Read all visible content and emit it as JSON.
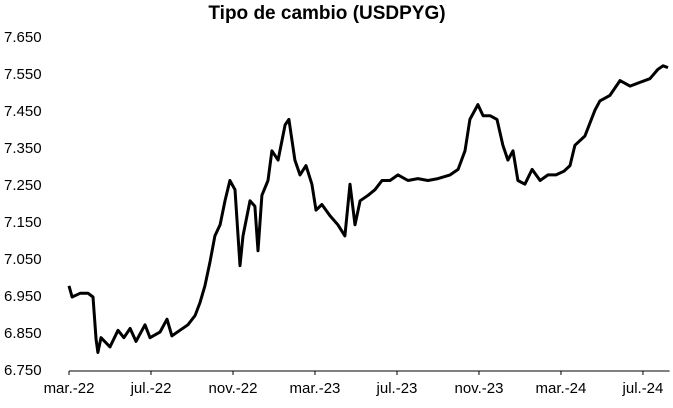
{
  "chart_data": {
    "type": "line",
    "title": "Tipo de cambio (USDPYG)",
    "x": [
      0,
      0.15,
      0.54,
      0.93,
      1.17,
      1.32,
      1.41,
      1.56,
      2.0,
      2.39,
      2.68,
      2.98,
      3.27,
      3.71,
      3.95,
      4.44,
      4.78,
      5.02,
      5.41,
      5.8,
      6.15,
      6.39,
      6.63,
      6.88,
      7.12,
      7.37,
      7.61,
      7.85,
      8.1,
      8.34,
      8.49,
      8.83,
      9.07,
      9.22,
      9.41,
      9.71,
      9.9,
      10.2,
      10.54,
      10.73,
      11.02,
      11.27,
      11.56,
      11.85,
      12.05,
      12.34,
      12.73,
      13.12,
      13.46,
      13.71,
      13.95,
      14.2,
      14.59,
      14.93,
      15.27,
      15.66,
      16.05,
      16.54,
      17.02,
      17.51,
      18.0,
      18.59,
      18.98,
      19.32,
      19.56,
      19.95,
      20.2,
      20.54,
      20.88,
      21.17,
      21.41,
      21.66,
      21.9,
      22.24,
      22.59,
      22.98,
      23.37,
      23.76,
      24.15,
      24.44,
      24.68,
      25.17,
      25.66,
      25.9,
      26.39,
      26.88,
      27.37,
      27.85,
      28.34,
      28.73,
      28.98,
      29.22
    ],
    "series": [
      {
        "name": "USDPYG",
        "color": "#000000",
        "values": [
          6980,
          6950,
          6960,
          6960,
          6950,
          6835,
          6800,
          6840,
          6815,
          6860,
          6840,
          6865,
          6830,
          6875,
          6840,
          6855,
          6890,
          6845,
          6860,
          6875,
          6900,
          6935,
          6980,
          7045,
          7115,
          7145,
          7210,
          7265,
          7240,
          7035,
          7115,
          7210,
          7195,
          7075,
          7225,
          7265,
          7345,
          7320,
          7415,
          7430,
          7320,
          7280,
          7305,
          7255,
          7185,
          7200,
          7170,
          7145,
          7115,
          7255,
          7145,
          7210,
          7225,
          7240,
          7265,
          7265,
          7280,
          7265,
          7270,
          7265,
          7270,
          7280,
          7295,
          7345,
          7430,
          7470,
          7440,
          7440,
          7430,
          7360,
          7320,
          7345,
          7265,
          7255,
          7295,
          7265,
          7280,
          7280,
          7290,
          7305,
          7360,
          7385,
          7455,
          7480,
          7495,
          7535,
          7520,
          7530,
          7540,
          7565,
          7575,
          7570
        ]
      }
    ],
    "xlim": [
      0,
      29.3
    ],
    "xticks": [
      {
        "value": 0,
        "label": "mar.-22"
      },
      {
        "value": 4,
        "label": "jul.-22"
      },
      {
        "value": 8,
        "label": "nov.-22"
      },
      {
        "value": 12,
        "label": "mar.-23"
      },
      {
        "value": 16,
        "label": "jul.-23"
      },
      {
        "value": 20,
        "label": "nov.-23"
      },
      {
        "value": 24,
        "label": "mar.-24"
      },
      {
        "value": 28,
        "label": "jul.-24"
      }
    ],
    "ylim": [
      6750,
      7650
    ],
    "yticks": [
      {
        "value": 6750,
        "label": "6.750"
      },
      {
        "value": 6850,
        "label": "6.850"
      },
      {
        "value": 6950,
        "label": "6.950"
      },
      {
        "value": 7050,
        "label": "7.050"
      },
      {
        "value": 7150,
        "label": "7.150"
      },
      {
        "value": 7250,
        "label": "7.250"
      },
      {
        "value": 7350,
        "label": "7.350"
      },
      {
        "value": 7450,
        "label": "7.450"
      },
      {
        "value": 7550,
        "label": "7.550"
      },
      {
        "value": 7650,
        "label": "7.650"
      }
    ],
    "grid": false
  }
}
